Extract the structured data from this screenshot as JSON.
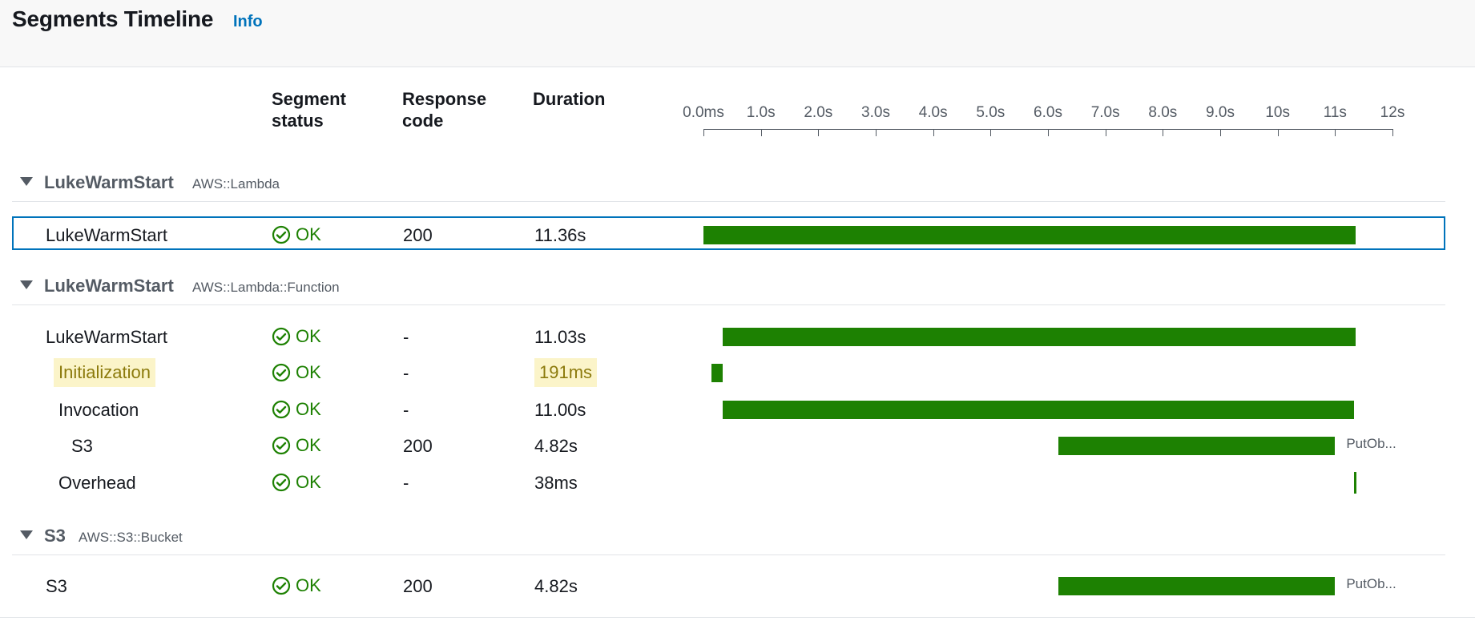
{
  "header": {
    "title": "Segments Timeline",
    "info_label": "Info"
  },
  "columns": {
    "status_line1": "Segment",
    "status_line2": "status",
    "response_line1": "Response",
    "response_line2": "code",
    "duration": "Duration"
  },
  "axis": {
    "ticks": [
      "0.0ms",
      "1.0s",
      "2.0s",
      "3.0s",
      "4.0s",
      "5.0s",
      "6.0s",
      "7.0s",
      "8.0s",
      "9.0s",
      "10s",
      "11s",
      "12s"
    ]
  },
  "groups": [
    {
      "name": "LukeWarmStart",
      "type": "AWS::Lambda"
    },
    {
      "name": "LukeWarmStart",
      "type": "AWS::Lambda::Function"
    },
    {
      "name": "S3",
      "type": "AWS::S3::Bucket"
    }
  ],
  "rows": [
    {
      "name": "LukeWarmStart",
      "status": "OK",
      "response_code": "200",
      "duration": "11.36s",
      "start_s": 0.0,
      "end_s": 11.36,
      "selected": true
    },
    {
      "name": "LukeWarmStart",
      "status": "OK",
      "response_code": "-",
      "duration": "11.03s",
      "start_s": 0.33,
      "end_s": 11.36
    },
    {
      "name": "Initialization",
      "status": "OK",
      "response_code": "-",
      "duration": "191ms",
      "start_s": 0.14,
      "end_s": 0.33,
      "highlighted": true
    },
    {
      "name": "Invocation",
      "status": "OK",
      "response_code": "-",
      "duration": "11.00s",
      "start_s": 0.33,
      "end_s": 11.33
    },
    {
      "name": "S3",
      "status": "OK",
      "response_code": "200",
      "duration": "4.82s",
      "start_s": 6.18,
      "end_s": 11.0,
      "label": "PutOb..."
    },
    {
      "name": "Overhead",
      "status": "OK",
      "response_code": "-",
      "duration": "38ms",
      "start_s": 11.33,
      "end_s": 11.36
    },
    {
      "name": "S3",
      "status": "OK",
      "response_code": "200",
      "duration": "4.82s",
      "start_s": 6.18,
      "end_s": 11.0,
      "label": "PutOb..."
    }
  ],
  "colors": {
    "ok_green": "#1d8102",
    "link_blue": "#0073bb",
    "highlight_bg": "#fbf4c9"
  },
  "icons": {
    "status": "check-circle-icon",
    "caret": "caret-down-icon"
  }
}
